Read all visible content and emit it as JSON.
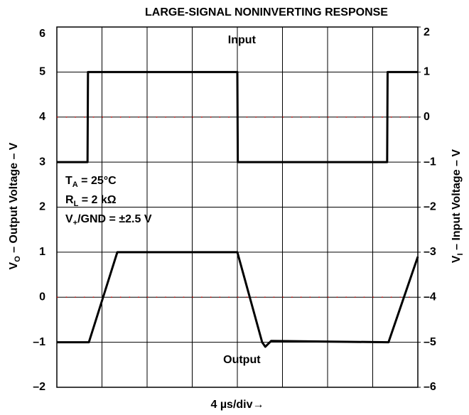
{
  "chart_data": {
    "type": "line",
    "title": "LARGE-SIGNAL NONINVERTING RESPONSE",
    "x_label": "4 µs/div→",
    "y_label": {
      "main": "V",
      "sub": "O",
      "rest": " – Output Voltage – V"
    },
    "y2_label": {
      "main": "V",
      "sub": "I",
      "rest": " – Input Voltage – V"
    },
    "conditions": [
      {
        "main": "T",
        "sub": "A",
        "rest": " = 25°C"
      },
      {
        "main": "R",
        "sub": "L",
        "rest": " = 2 kΩ"
      },
      {
        "main": "V",
        "sub": "+",
        "rest": "/GND = ±2.5 V"
      }
    ],
    "annotations": [
      {
        "text": "Input",
        "x": 4.1,
        "y2": 1.7
      },
      {
        "text": "Output",
        "x": 4.1,
        "y": -1.4
      }
    ],
    "xlim": [
      0,
      8
    ],
    "xticks": [
      0,
      1,
      2,
      3,
      4,
      5,
      6,
      7,
      8
    ],
    "ylim": [
      -2,
      6
    ],
    "yticks": [
      6,
      5,
      4,
      3,
      2,
      1,
      0,
      {
        "value": -1,
        "label": "–1"
      },
      {
        "value": -2,
        "label": "–2"
      }
    ],
    "y2lim": [
      -6,
      2
    ],
    "y2ticks": [
      2,
      1,
      0,
      {
        "value": -1,
        "label": "–1"
      },
      {
        "value": -2,
        "label": "–2"
      },
      {
        "value": -3,
        "label": "–3"
      },
      {
        "value": -4,
        "label": "–4"
      },
      {
        "value": -5,
        "label": "–5"
      },
      {
        "value": -6,
        "label": "–6"
      }
    ],
    "grid": true,
    "reference_lines": [
      {
        "axis": "y",
        "value": 0,
        "color": "#cc0000"
      },
      {
        "axis": "y2",
        "value": 0,
        "color": "#cc0000"
      }
    ],
    "series": [
      {
        "name": "Input",
        "color": "#000000",
        "axis": "y2",
        "x": [
          0,
          0.68,
          0.69,
          4.0,
          4.01,
          7.32,
          7.33,
          8.0
        ],
        "values": [
          -1,
          -1,
          1,
          1,
          -1,
          -1,
          1,
          1
        ]
      },
      {
        "name": "Output",
        "color": "#000000",
        "axis": "y",
        "x": [
          0,
          0.71,
          1.34,
          4.0,
          4.55,
          4.62,
          4.75,
          7.35,
          8.0
        ],
        "values": [
          -1,
          -1,
          1,
          1,
          -1.0,
          -1.1,
          -0.97,
          -1,
          0.9
        ]
      }
    ]
  }
}
